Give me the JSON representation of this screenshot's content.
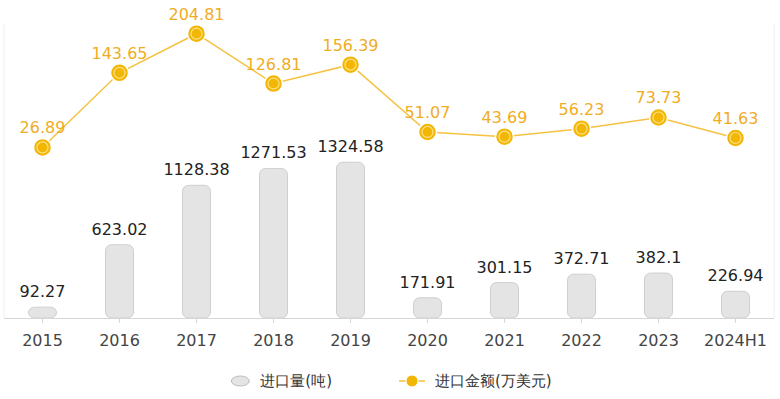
{
  "chart_data": {
    "type": "bar",
    "categories": [
      "2015",
      "2016",
      "2017",
      "2018",
      "2019",
      "2020",
      "2021",
      "2022",
      "2023",
      "2024H1"
    ],
    "series": [
      {
        "name": "进口量(吨)",
        "type": "bar",
        "color": "#e4e4e4",
        "values": [
          92.27,
          623.02,
          1128.38,
          1271.53,
          1324.58,
          171.91,
          301.15,
          372.71,
          382.1,
          226.94
        ]
      },
      {
        "name": "进口金额(万美元)",
        "type": "line",
        "color": "#f5c242",
        "marker": "circle",
        "axis": "y2",
        "values": [
          26.89,
          143.65,
          204.81,
          126.81,
          156.39,
          51.07,
          43.69,
          56.23,
          73.73,
          41.63
        ]
      }
    ],
    "ylim": [
      0,
      2500
    ],
    "y2lim": [
      -240,
      220
    ],
    "data_labels": true,
    "tick_labels": "x",
    "legend": "bottom",
    "grid": false
  }
}
